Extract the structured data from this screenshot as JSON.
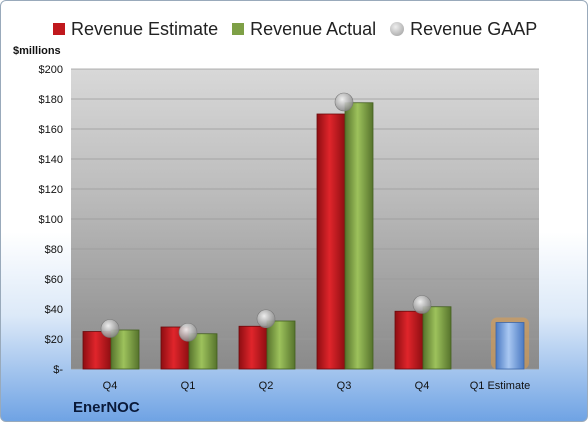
{
  "chart_data": {
    "type": "bar",
    "title": "",
    "ylabel": "$millions",
    "xlabel": "",
    "ylim": [
      0,
      200
    ],
    "yticks": [
      {
        "value": 0,
        "label": "$-"
      },
      {
        "value": 20,
        "label": "$20"
      },
      {
        "value": 40,
        "label": "$40"
      },
      {
        "value": 60,
        "label": "$60"
      },
      {
        "value": 80,
        "label": "$80"
      },
      {
        "value": 100,
        "label": "$100"
      },
      {
        "value": 120,
        "label": "$120"
      },
      {
        "value": 140,
        "label": "$140"
      },
      {
        "value": 160,
        "label": "$160"
      },
      {
        "value": 180,
        "label": "$180"
      },
      {
        "value": 200,
        "label": "$200"
      }
    ],
    "categories": [
      "Q4",
      "Q1",
      "Q2",
      "Q3",
      "Q4",
      "Q1 Estimate"
    ],
    "series": [
      {
        "name": "Revenue Estimate",
        "values": [
          25,
          28,
          28.5,
          170,
          38.5,
          31
        ],
        "color": "#c0181d"
      },
      {
        "name": "Revenue Actual",
        "values": [
          26,
          23.5,
          32,
          177.5,
          41.5,
          null
        ],
        "color": "#7ea046"
      },
      {
        "name": "Revenue GAAP",
        "values": [
          27,
          24.5,
          33.5,
          178,
          43,
          null
        ],
        "color": "#a0a0a0"
      }
    ],
    "estimate_bar_color": "#6d9be0",
    "estimate_glow_color": "#f0a03c",
    "legend_position": "top",
    "grid": true
  },
  "legend": {
    "estimate": "Revenue Estimate",
    "actual": "Revenue Actual",
    "gaap": "Revenue GAAP"
  },
  "axis": {
    "unit_label": "$millions"
  },
  "brand": "EnerNOC"
}
